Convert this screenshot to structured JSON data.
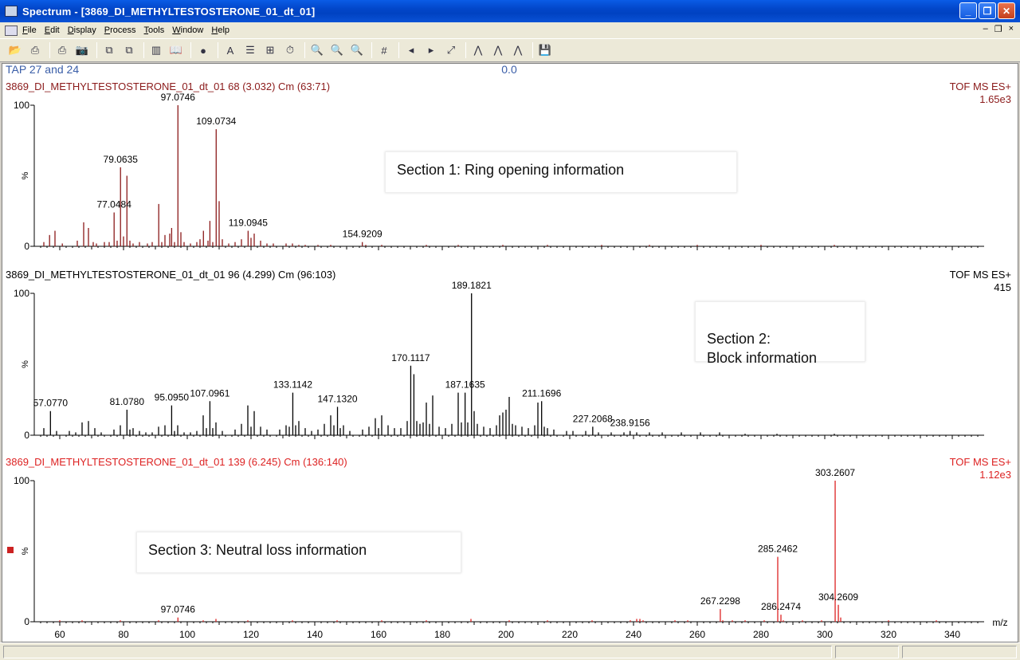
{
  "window": {
    "title": "Spectrum - [3869_DI_METHYLTESTOSTERONE_01_dt_01]",
    "buttons": [
      "_",
      "❐",
      "✕"
    ]
  },
  "menu": {
    "items": [
      "File",
      "Edit",
      "Display",
      "Process",
      "Tools",
      "Window",
      "Help"
    ],
    "mdi_buttons": [
      "–",
      "❐",
      "×"
    ]
  },
  "toolbar": {
    "icons": [
      "open-icon",
      "print-preview-icon",
      "print-icon",
      "camera-icon",
      "copy-icon",
      "paste-icon",
      "spectrum-list-icon",
      "book-icon",
      "globe-icon",
      "font-icon",
      "layout-icon",
      "peak-list-icon",
      "stopwatch-icon",
      "zoom-in-icon",
      "zoom-out-icon",
      "zoom-reset-icon",
      "grid-icon",
      "back-icon",
      "forward-icon",
      "fit-icon",
      "peak-icon",
      "smooth-icon",
      "center-icon",
      "save-icon"
    ],
    "glyphs": [
      "📂",
      "⎙",
      "⎙",
      "📷",
      "⧉",
      "⧉",
      "▥",
      "📖",
      "●",
      "A",
      "☰",
      "⊞",
      "⏱",
      "🔍",
      "🔍",
      "🔍",
      "#",
      "◂",
      "▸",
      "⤢",
      "⋀",
      "⋀",
      "⋀",
      "💾"
    ]
  },
  "header": {
    "left": "TAP 27 and 24",
    "center": "0.0"
  },
  "chart_data": [
    {
      "type": "line",
      "title": "3869_DI_METHYLTESTOSTERONE_01_dt_01 68 (3.032) Cm (63:71)",
      "mode": "TOF MS ES+",
      "intensity": "1.65e3",
      "color": "#8b1a1a",
      "ylabel": "%",
      "yticks": [
        "100",
        "0"
      ],
      "xlim": [
        52,
        350
      ],
      "ylim": [
        0,
        100
      ],
      "peaks": [
        [
          55.0,
          3
        ],
        [
          56.8,
          8
        ],
        [
          58.5,
          11
        ],
        [
          60.8,
          2
        ],
        [
          65.5,
          4
        ],
        [
          67.5,
          17
        ],
        [
          69.0,
          13
        ],
        [
          70.5,
          3
        ],
        [
          71.5,
          2
        ],
        [
          74.0,
          3
        ],
        [
          75.5,
          3
        ],
        [
          77.05,
          24
        ],
        [
          78.0,
          4
        ],
        [
          79.06,
          56
        ],
        [
          80.0,
          7
        ],
        [
          81.07,
          50
        ],
        [
          82.0,
          4
        ],
        [
          83.0,
          2
        ],
        [
          85.0,
          3
        ],
        [
          87.5,
          2
        ],
        [
          89.0,
          3
        ],
        [
          91.05,
          30
        ],
        [
          92.0,
          3
        ],
        [
          93.0,
          8
        ],
        [
          94.5,
          9
        ],
        [
          95.1,
          13
        ],
        [
          96.0,
          3
        ],
        [
          97.07,
          100
        ],
        [
          98.0,
          10
        ],
        [
          99.0,
          3
        ],
        [
          101.0,
          2
        ],
        [
          103.0,
          3
        ],
        [
          104.0,
          5
        ],
        [
          105.07,
          11
        ],
        [
          106.5,
          4
        ],
        [
          107.1,
          18
        ],
        [
          108.0,
          3
        ],
        [
          109.07,
          83
        ],
        [
          110.0,
          32
        ],
        [
          111.0,
          5
        ],
        [
          113.0,
          2
        ],
        [
          115.0,
          3
        ],
        [
          117.0,
          5
        ],
        [
          119.09,
          11
        ],
        [
          120.0,
          6
        ],
        [
          121.0,
          9
        ],
        [
          123.0,
          4
        ],
        [
          125.0,
          2
        ],
        [
          127.0,
          2
        ],
        [
          131.0,
          2
        ],
        [
          133.0,
          2
        ],
        [
          135.0,
          1
        ],
        [
          137.0,
          1
        ],
        [
          141.0,
          1
        ],
        [
          145.0,
          1
        ],
        [
          154.92,
          3
        ],
        [
          156.0,
          1
        ],
        [
          161.0,
          1
        ],
        [
          175.0,
          1
        ],
        [
          185.0,
          1
        ],
        [
          199.0,
          1
        ],
        [
          213.0,
          1
        ],
        [
          230.0,
          1
        ],
        [
          245.0,
          1
        ],
        [
          260.0,
          1
        ],
        [
          280.0,
          1
        ],
        [
          303.0,
          1
        ]
      ],
      "labels": [
        {
          "x": 97.0746,
          "y": 100,
          "text": "97.0746"
        },
        {
          "x": 109.0734,
          "y": 83,
          "text": "109.0734"
        },
        {
          "x": 79.0635,
          "y": 56,
          "text": "79.0635"
        },
        {
          "x": 77.0484,
          "y": 24,
          "text": "77.0484"
        },
        {
          "x": 119.0945,
          "y": 11,
          "text": "119.0945"
        },
        {
          "x": 154.9209,
          "y": 3,
          "text": "154.9209"
        }
      ],
      "annotation": "Section 1: Ring opening information"
    },
    {
      "type": "line",
      "title": "3869_DI_METHYLTESTOSTERONE_01_dt_01 96 (4.299) Cm (96:103)",
      "mode": "TOF MS ES+",
      "intensity": "415",
      "color": "#000000",
      "ylabel": "%",
      "yticks": [
        "100",
        "0"
      ],
      "xlim": [
        52,
        350
      ],
      "ylim": [
        0,
        100
      ],
      "peaks": [
        [
          55.0,
          5
        ],
        [
          57.08,
          17
        ],
        [
          59.0,
          3
        ],
        [
          63.0,
          3
        ],
        [
          65.0,
          2
        ],
        [
          67.0,
          9
        ],
        [
          69.0,
          10
        ],
        [
          71.0,
          5
        ],
        [
          73.0,
          2
        ],
        [
          77.0,
          4
        ],
        [
          79.0,
          7
        ],
        [
          81.08,
          18
        ],
        [
          82.0,
          4
        ],
        [
          83.0,
          5
        ],
        [
          85.0,
          3
        ],
        [
          87.0,
          2
        ],
        [
          89.0,
          2
        ],
        [
          91.0,
          6
        ],
        [
          93.0,
          7
        ],
        [
          95.1,
          21
        ],
        [
          96.0,
          3
        ],
        [
          97.0,
          7
        ],
        [
          99.0,
          2
        ],
        [
          101.0,
          2
        ],
        [
          103.0,
          3
        ],
        [
          105.0,
          14
        ],
        [
          106.0,
          5
        ],
        [
          107.1,
          24
        ],
        [
          108.0,
          5
        ],
        [
          109.0,
          9
        ],
        [
          111.0,
          3
        ],
        [
          115.0,
          4
        ],
        [
          117.0,
          8
        ],
        [
          119.0,
          21
        ],
        [
          120.0,
          6
        ],
        [
          121.0,
          17
        ],
        [
          123.0,
          6
        ],
        [
          125.0,
          4
        ],
        [
          129.0,
          4
        ],
        [
          131.0,
          7
        ],
        [
          132.0,
          6
        ],
        [
          133.11,
          30
        ],
        [
          134.0,
          7
        ],
        [
          135.0,
          10
        ],
        [
          137.0,
          5
        ],
        [
          139.0,
          3
        ],
        [
          141.0,
          4
        ],
        [
          143.0,
          8
        ],
        [
          145.0,
          14
        ],
        [
          146.0,
          7
        ],
        [
          147.13,
          20
        ],
        [
          148.0,
          5
        ],
        [
          149.0,
          7
        ],
        [
          151.0,
          3
        ],
        [
          155.0,
          4
        ],
        [
          157.0,
          6
        ],
        [
          159.0,
          12
        ],
        [
          160.0,
          5
        ],
        [
          161.0,
          14
        ],
        [
          163.0,
          7
        ],
        [
          165.0,
          5
        ],
        [
          167.0,
          5
        ],
        [
          169.0,
          10
        ],
        [
          170.11,
          49
        ],
        [
          171.1,
          43
        ],
        [
          172.0,
          10
        ],
        [
          173.0,
          8
        ],
        [
          174.0,
          9
        ],
        [
          175.0,
          23
        ],
        [
          176.0,
          8
        ],
        [
          177.0,
          28
        ],
        [
          179.0,
          6
        ],
        [
          181.0,
          5
        ],
        [
          183.0,
          8
        ],
        [
          185.0,
          30
        ],
        [
          186.0,
          9
        ],
        [
          187.16,
          30
        ],
        [
          188.0,
          9
        ],
        [
          189.18,
          100
        ],
        [
          190.0,
          17
        ],
        [
          191.0,
          8
        ],
        [
          193.0,
          6
        ],
        [
          195.0,
          5
        ],
        [
          197.0,
          7
        ],
        [
          198.0,
          14
        ],
        [
          199.0,
          16
        ],
        [
          200.0,
          18
        ],
        [
          201.0,
          27
        ],
        [
          202.0,
          8
        ],
        [
          203.0,
          7
        ],
        [
          205.0,
          6
        ],
        [
          207.0,
          5
        ],
        [
          209.0,
          7
        ],
        [
          210.0,
          23
        ],
        [
          211.17,
          24
        ],
        [
          212.0,
          6
        ],
        [
          213.0,
          5
        ],
        [
          215.0,
          4
        ],
        [
          219.0,
          3
        ],
        [
          221.0,
          3
        ],
        [
          225.0,
          3
        ],
        [
          227.21,
          6
        ],
        [
          229.0,
          2
        ],
        [
          233.0,
          2
        ],
        [
          237.0,
          2
        ],
        [
          238.92,
          3
        ],
        [
          241.0,
          2
        ],
        [
          245.0,
          2
        ],
        [
          249.0,
          2
        ],
        [
          255.0,
          2
        ],
        [
          261.0,
          2
        ],
        [
          267.0,
          2
        ],
        [
          275.0,
          1
        ],
        [
          285.0,
          1
        ],
        [
          303.0,
          1
        ]
      ],
      "labels": [
        {
          "x": 189.1821,
          "y": 100,
          "text": "189.1821"
        },
        {
          "x": 170.1117,
          "y": 49,
          "text": "170.1117"
        },
        {
          "x": 187.1635,
          "y": 30,
          "text": "187.1635"
        },
        {
          "x": 211.1696,
          "y": 24,
          "text": "211.1696"
        },
        {
          "x": 133.1142,
          "y": 30,
          "text": "133.1142"
        },
        {
          "x": 147.132,
          "y": 20,
          "text": "147.1320"
        },
        {
          "x": 107.0961,
          "y": 24,
          "text": "107.0961"
        },
        {
          "x": 95.095,
          "y": 21,
          "text": "95.0950"
        },
        {
          "x": 81.078,
          "y": 18,
          "text": "81.0780"
        },
        {
          "x": 57.077,
          "y": 17,
          "text": "57.0770"
        },
        {
          "x": 227.2068,
          "y": 6,
          "text": "227.2068"
        },
        {
          "x": 238.9156,
          "y": 3,
          "text": "238.9156"
        }
      ],
      "annotation": "Section 2:\nBlock information"
    },
    {
      "type": "line",
      "title": "3869_DI_METHYLTESTOSTERONE_01_dt_01 139 (6.245) Cm (136:140)",
      "mode": "TOF MS ES+",
      "intensity": "1.12e3",
      "color": "#dd2222",
      "ylabel": "%",
      "yticks": [
        "100",
        "0"
      ],
      "xlim": [
        52,
        350
      ],
      "ylim": [
        0,
        100
      ],
      "xlabel": "m/z",
      "xticks": [
        "60",
        "80",
        "100",
        "120",
        "140",
        "160",
        "180",
        "200",
        "220",
        "240",
        "260",
        "280",
        "300",
        "320",
        "340"
      ],
      "peaks": [
        [
          60.0,
          1
        ],
        [
          67.0,
          1
        ],
        [
          79.0,
          1
        ],
        [
          91.0,
          1
        ],
        [
          97.07,
          3
        ],
        [
          105.0,
          1
        ],
        [
          109.0,
          2
        ],
        [
          119.0,
          1
        ],
        [
          133.0,
          1
        ],
        [
          147.0,
          1
        ],
        [
          161.0,
          1
        ],
        [
          175.0,
          1
        ],
        [
          189.0,
          2
        ],
        [
          201.0,
          1
        ],
        [
          213.0,
          1
        ],
        [
          227.0,
          1
        ],
        [
          239.0,
          1
        ],
        [
          241.0,
          2
        ],
        [
          242.0,
          2
        ],
        [
          243.0,
          1
        ],
        [
          253.0,
          1
        ],
        [
          257.0,
          1
        ],
        [
          267.23,
          9
        ],
        [
          268.0,
          1
        ],
        [
          271.0,
          1
        ],
        [
          275.0,
          1
        ],
        [
          281.0,
          1
        ],
        [
          285.25,
          46
        ],
        [
          286.25,
          5
        ],
        [
          287.0,
          1
        ],
        [
          293.0,
          1
        ],
        [
          299.0,
          1
        ],
        [
          303.26,
          100
        ],
        [
          304.26,
          12
        ],
        [
          305.0,
          3
        ],
        [
          320.0,
          1
        ],
        [
          335.0,
          1
        ]
      ],
      "labels": [
        {
          "x": 303.2607,
          "y": 100,
          "text": "303.2607"
        },
        {
          "x": 285.2462,
          "y": 46,
          "text": "285.2462"
        },
        {
          "x": 304.2609,
          "y": 12,
          "text": "304.2609"
        },
        {
          "x": 286.2474,
          "y": 5,
          "text": "286.2474"
        },
        {
          "x": 267.2298,
          "y": 9,
          "text": "267.2298"
        },
        {
          "x": 97.0746,
          "y": 3,
          "text": "97.0746"
        }
      ],
      "annotation": "Section 3: Neutral loss information"
    }
  ]
}
